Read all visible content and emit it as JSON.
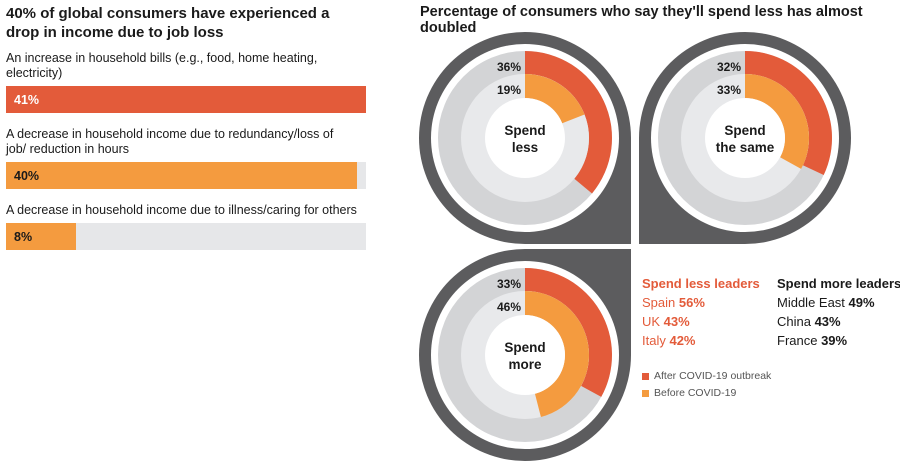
{
  "left_panel": {
    "title": "40% of global consumers have experienced a drop in income due to job loss",
    "bars": [
      {
        "label": "An increase in household bills (e.g., food, home heating, electricity)",
        "value": 41,
        "value_label": "41%",
        "color": "#e35b3a",
        "text_color": "#ffffff"
      },
      {
        "label": "A decrease in household income due to redundancy/loss of job/ reduction in hours",
        "value": 40,
        "value_label": "40%",
        "color": "#f49b3f",
        "text_color": "#1a1a1a"
      },
      {
        "label": "A decrease in household income due to illness/caring for others",
        "value": 8,
        "value_label": "8%",
        "color": "#f49b3f",
        "text_color": "#1a1a1a"
      }
    ],
    "scale_max": 41.7
  },
  "right_panel": {
    "title": "Percentage of consumers who say they'll spend less has almost doubled"
  },
  "chart_data": {
    "type": "pie",
    "title": "Percentage of consumers who say they'll spend less has almost doubled",
    "series_names": [
      "After COVID-19 outbreak",
      "Before COVID-19"
    ],
    "colors": {
      "after": "#e35b3a",
      "before": "#f49b3f",
      "track_outer": "#d3d4d6",
      "track_inner": "#e8e9eb",
      "frame": "#5c5c5e"
    },
    "donuts": [
      {
        "label_line1": "Spend",
        "label_line2": "less",
        "after": 36,
        "after_label": "36%",
        "before": 19,
        "before_label": "19%",
        "corner": "bottom-right"
      },
      {
        "label_line1": "Spend",
        "label_line2": "the same",
        "after": 32,
        "after_label": "32%",
        "before": 33,
        "before_label": "33%",
        "corner": "bottom-left"
      },
      {
        "label_line1": "Spend",
        "label_line2": "more",
        "after": 33,
        "after_label": "33%",
        "before": 46,
        "before_label": "46%",
        "corner": "top-right"
      }
    ]
  },
  "leaders": {
    "less": {
      "heading": "Spend less leaders",
      "color": "#e35b3a",
      "items": [
        {
          "country": "Spain",
          "value": "56%"
        },
        {
          "country": "UK",
          "value": "43%"
        },
        {
          "country": "Italy",
          "value": "42%"
        }
      ]
    },
    "more": {
      "heading": "Spend more leaders",
      "color": "#1a1a1a",
      "items": [
        {
          "country": "Middle East",
          "value": "49%"
        },
        {
          "country": "China",
          "value": "43%"
        },
        {
          "country": "France",
          "value": "39%"
        }
      ]
    }
  },
  "legend": [
    {
      "label": "After COVID-19 outbreak",
      "color": "#e35b3a"
    },
    {
      "label": "Before COVID-19",
      "color": "#f49b3f"
    }
  ]
}
